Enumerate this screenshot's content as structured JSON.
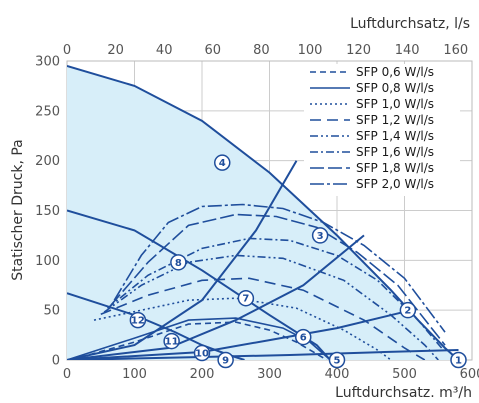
{
  "chart_data": {
    "type": "line",
    "xlabel_bottom": "Luftdurchsatz. m³/h",
    "xlabel_top": "Luftdurchsatz, l/s",
    "ylabel": "Statischer Druck, Pa",
    "xlim": [
      0,
      600
    ],
    "xlim_top": [
      0,
      166.67
    ],
    "ylim": [
      0,
      300
    ],
    "xticks": [
      0,
      100,
      200,
      300,
      400,
      500,
      600
    ],
    "xticks_top": [
      0,
      20,
      40,
      60,
      80,
      100,
      120,
      140,
      160
    ],
    "yticks": [
      0,
      50,
      100,
      150,
      200,
      250,
      300
    ],
    "grid": true,
    "legend_position": "top-right",
    "colors": {
      "line": "#1f4e9c",
      "fill": "#d7eef9",
      "grid": "#cccccc"
    },
    "fan_curves": [
      {
        "x": [
          0,
          100,
          200,
          300,
          400,
          480,
          520,
          560,
          580
        ],
        "y": [
          295,
          275,
          240,
          188,
          125,
          70,
          40,
          12,
          0
        ]
      },
      {
        "x": [
          0,
          100,
          200,
          300,
          370,
          390
        ],
        "y": [
          150,
          130,
          90,
          45,
          15,
          0
        ]
      },
      {
        "x": [
          0,
          100,
          160,
          200,
          240,
          263
        ],
        "y": [
          67,
          45,
          28,
          15,
          5,
          0
        ]
      }
    ],
    "system_curves": [
      {
        "x": [
          0,
          100,
          200,
          280,
          340
        ],
        "y": [
          0,
          15,
          60,
          130,
          200
        ]
      },
      {
        "x": [
          0,
          150,
          250,
          350,
          440
        ],
        "y": [
          0,
          12,
          40,
          75,
          125
        ]
      },
      {
        "x": [
          0,
          200,
          300,
          400,
          510
        ],
        "y": [
          0,
          8,
          20,
          32,
          50
        ]
      },
      {
        "x": [
          0,
          200,
          330,
          470,
          580
        ],
        "y": [
          0,
          3,
          5,
          8,
          10
        ]
      }
    ],
    "series": [
      {
        "name": "SFP 0,6 W/l/s",
        "dash": "6,4",
        "x": [
          5,
          100,
          180,
          250,
          300,
          340,
          370,
          385
        ],
        "y": [
          0,
          18,
          36,
          38,
          30,
          18,
          6,
          0
        ]
      },
      {
        "name": "SFP 0,8 W/l/s",
        "dash": "",
        "x": [
          0,
          100,
          180,
          250,
          320,
          360,
          380,
          390
        ],
        "y": [
          0,
          22,
          40,
          42,
          32,
          18,
          6,
          0
        ]
      },
      {
        "name": "SFP 1,0 W/l/s",
        "dash": "2,3",
        "x": [
          40,
          110,
          180,
          250,
          340,
          410,
          460,
          480
        ],
        "y": [
          40,
          50,
          60,
          62,
          52,
          30,
          10,
          0
        ]
      },
      {
        "name": "SFP 1,2 W/l/s",
        "dash": "11,6",
        "x": [
          50,
          120,
          200,
          270,
          350,
          440,
          500,
          530
        ],
        "y": [
          46,
          65,
          80,
          82,
          70,
          40,
          12,
          0
        ]
      },
      {
        "name": "SFP 1,4 W/l/s",
        "dash": "8,3,2,3,2,3",
        "x": [
          55,
          110,
          180,
          250,
          320,
          410,
          480,
          530,
          550
        ],
        "y": [
          48,
          75,
          98,
          105,
          102,
          80,
          45,
          15,
          0
        ]
      },
      {
        "name": "SFP 1,6 W/l/s",
        "dash": "8,3,2,3",
        "x": [
          60,
          120,
          200,
          270,
          330,
          400,
          460,
          520,
          555
        ],
        "y": [
          52,
          85,
          112,
          122,
          120,
          105,
          80,
          40,
          12
        ]
      },
      {
        "name": "SFP 1,8 W/l/s",
        "dash": "14,4",
        "x": [
          65,
          120,
          180,
          250,
          310,
          370,
          430,
          490,
          560
        ],
        "y": [
          55,
          98,
          135,
          146,
          144,
          133,
          108,
          75,
          15
        ]
      },
      {
        "name": "SFP 2,0 W/l/s",
        "dash": "14,3,3,3",
        "x": [
          70,
          110,
          150,
          200,
          260,
          320,
          380,
          440,
          500,
          560
        ],
        "y": [
          60,
          105,
          138,
          154,
          156,
          152,
          138,
          115,
          82,
          28
        ]
      }
    ],
    "markers": [
      {
        "label": "1",
        "x": 580,
        "y": 0
      },
      {
        "label": "2",
        "x": 505,
        "y": 50
      },
      {
        "label": "3",
        "x": 375,
        "y": 125
      },
      {
        "label": "4",
        "x": 230,
        "y": 198
      },
      {
        "label": "5",
        "x": 400,
        "y": 0
      },
      {
        "label": "6",
        "x": 350,
        "y": 23
      },
      {
        "label": "7",
        "x": 265,
        "y": 62
      },
      {
        "label": "8",
        "x": 165,
        "y": 98
      },
      {
        "label": "9",
        "x": 235,
        "y": 0
      },
      {
        "label": "10",
        "x": 200,
        "y": 7
      },
      {
        "label": "11",
        "x": 155,
        "y": 19
      },
      {
        "label": "12",
        "x": 105,
        "y": 40
      }
    ]
  }
}
